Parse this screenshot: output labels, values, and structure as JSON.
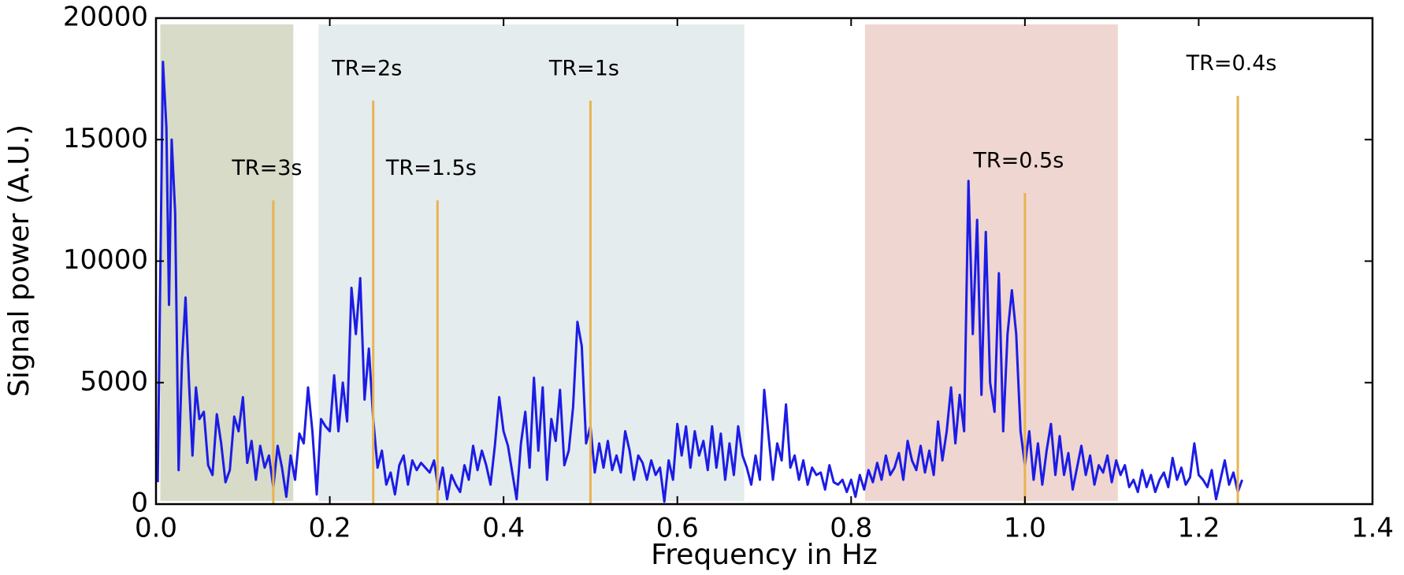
{
  "chart_data": {
    "type": "line",
    "xlabel": "Frequency in Hz",
    "ylabel": "Signal power (A.U.)",
    "color": "#1c1ce6",
    "xlim": [
      0,
      1.4
    ],
    "ylim": [
      0,
      20000
    ],
    "xticks": [
      {
        "value": 0,
        "label": "0.0"
      },
      0.2,
      0.4,
      0.6,
      0.8,
      {
        "value": 1,
        "label": "1.0"
      },
      1.2,
      1.4
    ],
    "yticks": [
      0,
      5000,
      10000,
      15000,
      20000
    ],
    "regions": [
      {
        "x0": 0.005,
        "x1": 0.158,
        "color": "#d7dbc8"
      },
      {
        "x0": 0.187,
        "x1": 0.677,
        "color": "#e5eced"
      },
      {
        "x0": 0.816,
        "x1": 1.107,
        "color": "#efd6d0"
      }
    ],
    "marker_color": "#e8b350",
    "markers": [
      {
        "label": "TR=3s",
        "x": 0.135,
        "height": 12500
      },
      {
        "label": "TR=2s",
        "x": 0.25,
        "height": 16600
      },
      {
        "label": "TR=1.5s",
        "x": 0.324,
        "height": 12500
      },
      {
        "label": "TR=1s",
        "x": 0.5,
        "height": 16600
      },
      {
        "label": "TR=0.5s",
        "x": 1.0,
        "height": 12800
      },
      {
        "label": "TR=0.4s",
        "x": 1.245,
        "height": 16800
      }
    ],
    "x": [
      0.002,
      0.008,
      0.012,
      0.015,
      0.018,
      0.022,
      0.026,
      0.03,
      0.034,
      0.038,
      0.042,
      0.046,
      0.05,
      0.055,
      0.06,
      0.065,
      0.07,
      0.075,
      0.08,
      0.085,
      0.09,
      0.095,
      0.1,
      0.105,
      0.11,
      0.115,
      0.12,
      0.125,
      0.13,
      0.135,
      0.14,
      0.145,
      0.15,
      0.155,
      0.16,
      0.165,
      0.17,
      0.175,
      0.18,
      0.185,
      0.19,
      0.195,
      0.2,
      0.205,
      0.21,
      0.215,
      0.22,
      0.225,
      0.23,
      0.235,
      0.24,
      0.245,
      0.25,
      0.255,
      0.26,
      0.265,
      0.27,
      0.275,
      0.28,
      0.285,
      0.29,
      0.295,
      0.3,
      0.305,
      0.31,
      0.315,
      0.32,
      0.325,
      0.33,
      0.335,
      0.34,
      0.345,
      0.35,
      0.355,
      0.36,
      0.365,
      0.37,
      0.375,
      0.38,
      0.385,
      0.39,
      0.395,
      0.4,
      0.405,
      0.41,
      0.415,
      0.42,
      0.425,
      0.43,
      0.435,
      0.44,
      0.445,
      0.45,
      0.455,
      0.46,
      0.465,
      0.47,
      0.475,
      0.48,
      0.485,
      0.49,
      0.495,
      0.5,
      0.505,
      0.51,
      0.515,
      0.52,
      0.525,
      0.53,
      0.535,
      0.54,
      0.545,
      0.55,
      0.555,
      0.56,
      0.565,
      0.57,
      0.575,
      0.58,
      0.585,
      0.59,
      0.595,
      0.6,
      0.605,
      0.61,
      0.615,
      0.62,
      0.625,
      0.63,
      0.635,
      0.64,
      0.645,
      0.65,
      0.655,
      0.66,
      0.665,
      0.67,
      0.675,
      0.68,
      0.685,
      0.69,
      0.695,
      0.7,
      0.705,
      0.71,
      0.715,
      0.72,
      0.725,
      0.73,
      0.735,
      0.74,
      0.745,
      0.75,
      0.755,
      0.76,
      0.765,
      0.77,
      0.775,
      0.78,
      0.785,
      0.79,
      0.795,
      0.8,
      0.805,
      0.81,
      0.815,
      0.82,
      0.825,
      0.83,
      0.835,
      0.84,
      0.845,
      0.85,
      0.855,
      0.86,
      0.865,
      0.87,
      0.875,
      0.88,
      0.885,
      0.89,
      0.895,
      0.9,
      0.905,
      0.91,
      0.915,
      0.92,
      0.925,
      0.93,
      0.935,
      0.94,
      0.945,
      0.95,
      0.955,
      0.96,
      0.965,
      0.97,
      0.975,
      0.98,
      0.985,
      0.99,
      0.995,
      1.0,
      1.005,
      1.01,
      1.015,
      1.02,
      1.025,
      1.03,
      1.035,
      1.04,
      1.045,
      1.05,
      1.055,
      1.06,
      1.065,
      1.07,
      1.075,
      1.08,
      1.085,
      1.09,
      1.095,
      1.1,
      1.105,
      1.11,
      1.115,
      1.12,
      1.125,
      1.13,
      1.135,
      1.14,
      1.145,
      1.15,
      1.155,
      1.16,
      1.165,
      1.17,
      1.175,
      1.18,
      1.185,
      1.19,
      1.195,
      1.2,
      1.205,
      1.21,
      1.215,
      1.22,
      1.225,
      1.23,
      1.235,
      1.24,
      1.245,
      1.25
    ],
    "values": [
      900,
      18200,
      15500,
      8200,
      15000,
      12000,
      1400,
      6000,
      8500,
      5000,
      2000,
      4800,
      3500,
      3800,
      1600,
      1200,
      3700,
      2500,
      900,
      1400,
      3600,
      3000,
      4400,
      1700,
      2600,
      1000,
      2400,
      1500,
      2000,
      700,
      2400,
      1500,
      300,
      2000,
      1000,
      2900,
      2500,
      4800,
      3000,
      400,
      3500,
      3200,
      3000,
      5300,
      3000,
      5000,
      3400,
      8900,
      7000,
      9300,
      4300,
      6400,
      3500,
      1500,
      2200,
      800,
      1300,
      400,
      1600,
      2000,
      800,
      1800,
      1400,
      1700,
      1500,
      1300,
      1800,
      600,
      1500,
      200,
      1200,
      800,
      500,
      1600,
      1000,
      2400,
      1400,
      2200,
      1600,
      800,
      2400,
      4400,
      3000,
      2400,
      1300,
      200,
      2500,
      3800,
      1500,
      5200,
      2200,
      4800,
      1000,
      3500,
      2600,
      4700,
      1600,
      2200,
      4000,
      7500,
      6500,
      2500,
      3200,
      1300,
      2500,
      1500,
      2600,
      1400,
      2000,
      1300,
      3000,
      2200,
      1000,
      2000,
      1700,
      1000,
      1800,
      1200,
      1500,
      100,
      1800,
      1000,
      3300,
      2000,
      3200,
      1500,
      3000,
      2000,
      2600,
      1400,
      3200,
      1500,
      2900,
      1000,
      2500,
      1200,
      3200,
      2000,
      1500,
      800,
      2000,
      1000,
      4700,
      2800,
      1000,
      2500,
      1800,
      4100,
      1500,
      2000,
      1000,
      1800,
      800,
      1500,
      1200,
      1300,
      600,
      1600,
      900,
      800,
      1000,
      500,
      1000,
      300,
      1200,
      600,
      1400,
      900,
      1700,
      1000,
      2000,
      1200,
      1500,
      2100,
      1000,
      2600,
      1800,
      1400,
      2400,
      1300,
      2200,
      1200,
      3400,
      1800,
      3000,
      4800,
      2500,
      4500,
      3000,
      13300,
      7000,
      11700,
      4500,
      11200,
      5000,
      3800,
      9500,
      3000,
      7000,
      8800,
      7000,
      3000,
      1600,
      3000,
      1000,
      2500,
      800,
      2200,
      3300,
      1200,
      2800,
      1200,
      2100,
      600,
      1500,
      2400,
      1200,
      2000,
      800,
      1600,
      1300,
      2000,
      900,
      1800,
      1200,
      1600,
      700,
      1000,
      500,
      1400,
      700,
      1200,
      500,
      1000,
      1300,
      700,
      1900,
      1000,
      1500,
      800,
      1100,
      2500,
      1200,
      1000,
      700,
      1400,
      200,
      1000,
      1800,
      800,
      1300,
      500,
      1000
    ]
  }
}
